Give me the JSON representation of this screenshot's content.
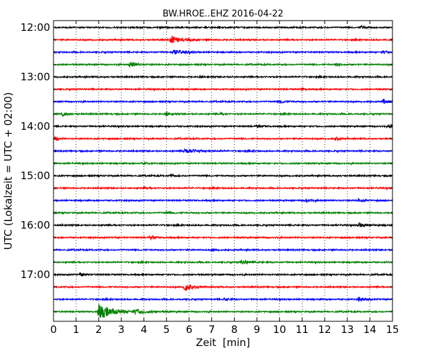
{
  "chart_data": {
    "type": "line",
    "title": "BW.HROE..EHZ 2016-04-22",
    "xlabel": "Zeit  [min]",
    "ylabel": "UTC (Lokalzeit = UTC + 02:00)",
    "xlim": [
      0,
      15
    ],
    "x_ticks": [
      "0",
      "1",
      "2",
      "3",
      "4",
      "5",
      "6",
      "7",
      "8",
      "9",
      "10",
      "11",
      "12",
      "13",
      "14",
      "15"
    ],
    "y_tick_labels": [
      "12:00",
      "13:00",
      "14:00",
      "15:00",
      "16:00",
      "17:00"
    ],
    "grid": "vertical dotted",
    "color_cycle": [
      "#000000",
      "#ff0000",
      "#0000ff",
      "#008000"
    ],
    "traces": [
      {
        "start": "12:00",
        "bursts": [
          {
            "t": 13.6,
            "amp": 0.35,
            "dur": 0.4
          }
        ]
      },
      {
        "start": "12:15",
        "bursts": [
          {
            "t": 5.2,
            "amp": 0.8,
            "dur": 1.0
          }
        ]
      },
      {
        "start": "12:30",
        "bursts": [
          {
            "t": 5.3,
            "amp": 0.6,
            "dur": 0.8
          },
          {
            "t": 14.6,
            "amp": 0.3,
            "dur": 0.3
          }
        ]
      },
      {
        "start": "12:45",
        "bursts": [
          {
            "t": 3.4,
            "amp": 0.7,
            "dur": 0.5
          },
          {
            "t": 12.5,
            "amp": 0.3,
            "dur": 0.4
          }
        ]
      },
      {
        "start": "13:00",
        "bursts": [
          {
            "t": 6.5,
            "amp": 0.2,
            "dur": 0.3
          }
        ]
      },
      {
        "start": "13:15",
        "bursts": [
          {
            "t": 11.0,
            "amp": 0.2,
            "dur": 0.3
          }
        ]
      },
      {
        "start": "13:30",
        "bursts": [
          {
            "t": 10.0,
            "amp": 0.3,
            "dur": 0.6
          },
          {
            "t": 14.6,
            "amp": 0.5,
            "dur": 0.4
          }
        ]
      },
      {
        "start": "13:45",
        "bursts": [
          {
            "t": 0.4,
            "amp": 0.5,
            "dur": 0.4
          },
          {
            "t": 5.0,
            "amp": 0.45,
            "dur": 0.3
          },
          {
            "t": 7.4,
            "amp": 0.25,
            "dur": 0.3
          }
        ]
      },
      {
        "start": "14:00",
        "bursts": [
          {
            "t": 9.0,
            "amp": 0.25,
            "dur": 0.4
          },
          {
            "t": 14.9,
            "amp": 0.6,
            "dur": 0.2
          }
        ]
      },
      {
        "start": "14:15",
        "bursts": [
          {
            "t": 0.1,
            "amp": 0.6,
            "dur": 0.2
          },
          {
            "t": 12.5,
            "amp": 0.4,
            "dur": 0.3
          }
        ]
      },
      {
        "start": "14:30",
        "bursts": [
          {
            "t": 5.8,
            "amp": 0.5,
            "dur": 1.2
          }
        ]
      },
      {
        "start": "14:45",
        "bursts": [
          {
            "t": 4.0,
            "amp": 0.2,
            "dur": 0.3
          }
        ]
      },
      {
        "start": "15:00",
        "bursts": [
          {
            "t": 5.2,
            "amp": 0.3,
            "dur": 0.3
          }
        ]
      },
      {
        "start": "15:15",
        "bursts": [
          {
            "t": 4.0,
            "amp": 0.2,
            "dur": 0.3
          }
        ]
      },
      {
        "start": "15:30",
        "bursts": [
          {
            "t": 11.2,
            "amp": 0.35,
            "dur": 0.6
          },
          {
            "t": 13.5,
            "amp": 0.35,
            "dur": 0.4
          }
        ]
      },
      {
        "start": "15:45",
        "bursts": [
          {
            "t": 5.0,
            "amp": 0.25,
            "dur": 0.5
          }
        ]
      },
      {
        "start": "16:00",
        "bursts": [
          {
            "t": 13.5,
            "amp": 0.4,
            "dur": 0.8
          }
        ]
      },
      {
        "start": "16:15",
        "bursts": [
          {
            "t": 4.3,
            "amp": 0.5,
            "dur": 0.3
          }
        ]
      },
      {
        "start": "16:30",
        "bursts": [
          {
            "t": 7.0,
            "amp": 0.2,
            "dur": 0.3
          }
        ]
      },
      {
        "start": "16:45",
        "bursts": [
          {
            "t": 8.3,
            "amp": 0.45,
            "dur": 0.8
          }
        ]
      },
      {
        "start": "17:00",
        "bursts": [
          {
            "t": 1.2,
            "amp": 0.35,
            "dur": 0.4
          }
        ]
      },
      {
        "start": "17:15",
        "bursts": [
          {
            "t": 5.8,
            "amp": 1.0,
            "dur": 0.6
          }
        ]
      },
      {
        "start": "17:30",
        "bursts": [
          {
            "t": 7.6,
            "amp": 0.3,
            "dur": 0.4
          },
          {
            "t": 13.5,
            "amp": 0.45,
            "dur": 0.5
          }
        ]
      },
      {
        "start": "17:45",
        "bursts": [
          {
            "t": 2.0,
            "amp": 1.6,
            "dur": 1.4
          },
          {
            "t": 3.6,
            "amp": 0.4,
            "dur": 1.0
          }
        ]
      }
    ]
  }
}
